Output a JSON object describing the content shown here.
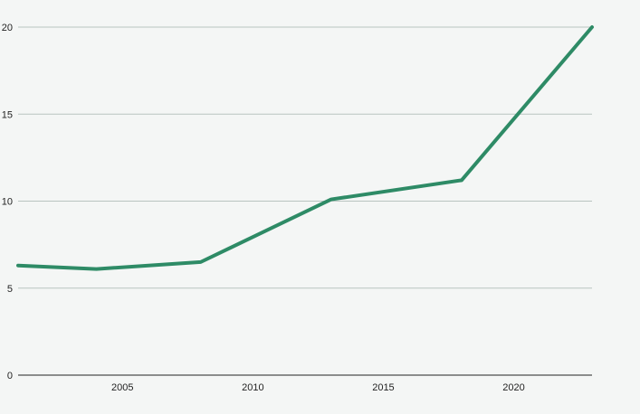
{
  "chart_data": {
    "type": "line",
    "x": [
      2001,
      2004,
      2008,
      2013,
      2018,
      2023
    ],
    "series": [
      {
        "values": [
          6.3,
          6.1,
          6.5,
          10.1,
          11.2,
          20.0
        ]
      }
    ],
    "xlim": [
      2001,
      2023
    ],
    "ylim": [
      0,
      20
    ],
    "x_ticks": [
      "2005",
      "2010",
      "2015",
      "2020"
    ],
    "y_ticks": [
      "0",
      "5",
      "10",
      "15",
      "20"
    ],
    "grid": "horizontal",
    "title": "",
    "xlabel": "",
    "ylabel": "",
    "colors": {
      "line": "#2e8b66",
      "grid": "#b8c4c0",
      "axis": "#222222",
      "background": "#f4f6f5"
    }
  }
}
